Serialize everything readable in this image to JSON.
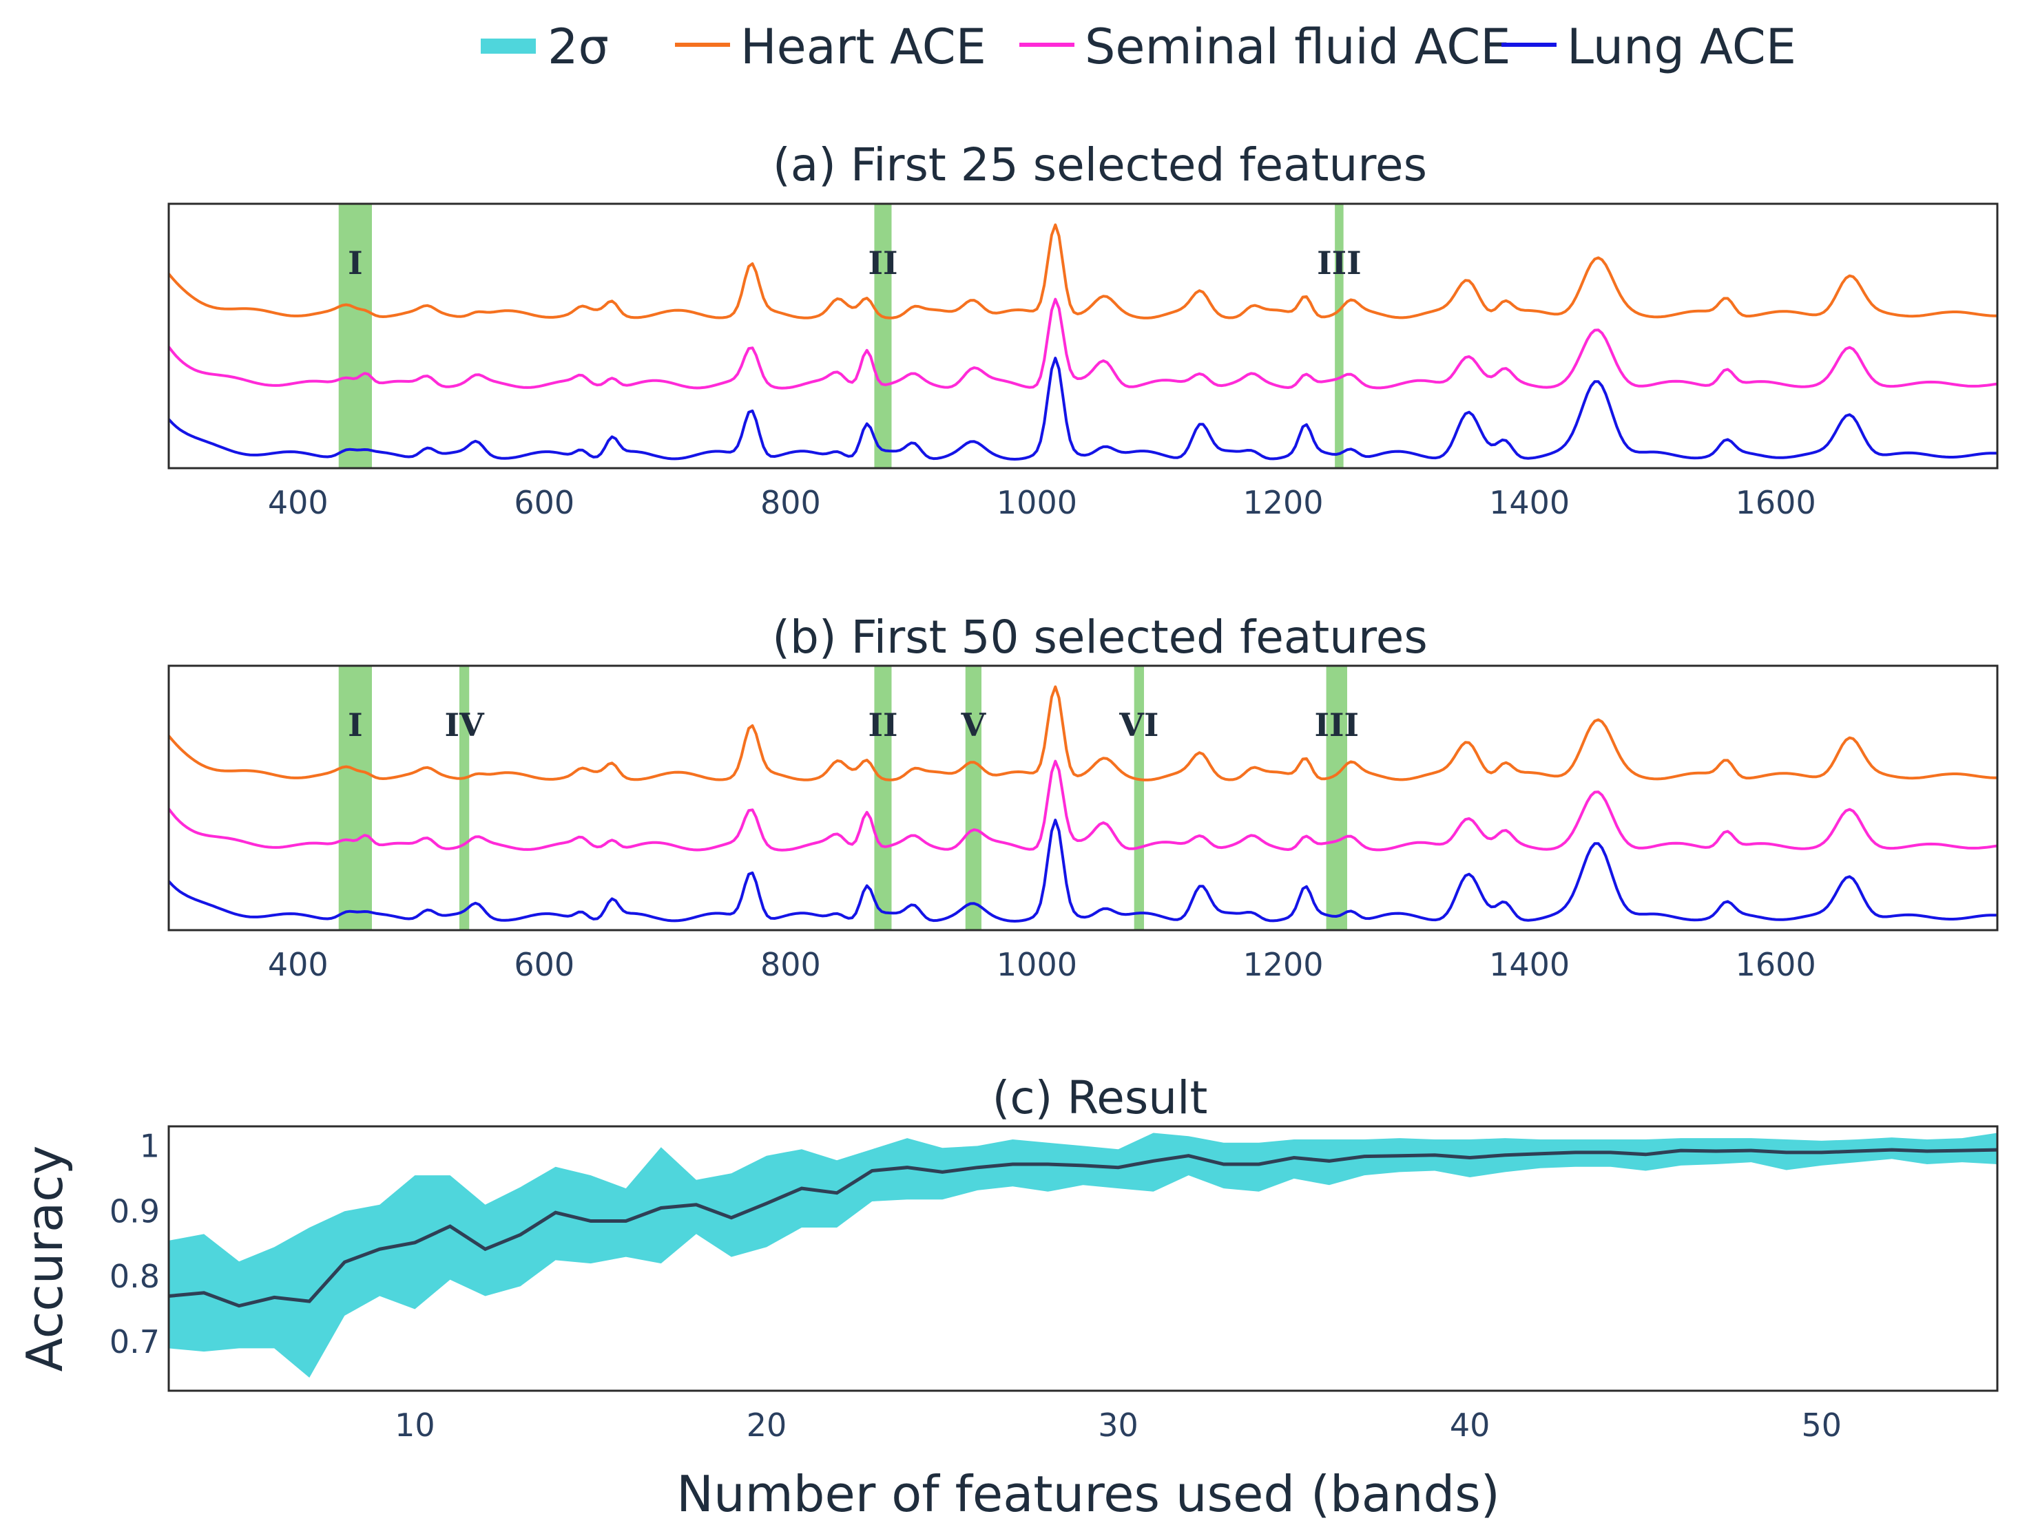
{
  "legend": [
    {
      "key": "band",
      "label": "2σ",
      "color": "#4fd6dc"
    },
    {
      "key": "heart",
      "label": "Heart ACE",
      "color": "#f5711f"
    },
    {
      "key": "seminal",
      "label": "Seminal fluid ACE",
      "color": "#ff2ad8"
    },
    {
      "key": "lung",
      "label": "Lung ACE",
      "color": "#1414e6"
    }
  ],
  "colors": {
    "highlight": "#5cbf4a",
    "mean_line": "#2f3f55",
    "band": "#4fd6dc"
  },
  "chart_data": [
    {
      "id": "a",
      "type": "line",
      "title": "(a) First 25 selected features",
      "xlim": [
        295,
        1780
      ],
      "x_ticks": [
        400,
        600,
        800,
        1000,
        1200,
        1400,
        1600
      ],
      "series": [
        "Heart ACE",
        "Seminal fluid ACE",
        "Lung ACE"
      ],
      "highlight_bands": [
        {
          "label": "I",
          "from": 433,
          "to": 460
        },
        {
          "label": "II",
          "from": 868,
          "to": 882
        },
        {
          "label": "III",
          "from": 1242,
          "to": 1249
        }
      ]
    },
    {
      "id": "b",
      "type": "line",
      "title": "(b) First 50 selected features",
      "xlim": [
        295,
        1780
      ],
      "x_ticks": [
        400,
        600,
        800,
        1000,
        1200,
        1400,
        1600
      ],
      "series": [
        "Heart ACE",
        "Seminal fluid ACE",
        "Lung ACE"
      ],
      "highlight_bands": [
        {
          "label": "I",
          "from": 433,
          "to": 460
        },
        {
          "label": "IV",
          "from": 531,
          "to": 539
        },
        {
          "label": "II",
          "from": 868,
          "to": 882
        },
        {
          "label": "V",
          "from": 942,
          "to": 955
        },
        {
          "label": "VI",
          "from": 1079,
          "to": 1087
        },
        {
          "label": "III",
          "from": 1235,
          "to": 1252
        }
      ]
    },
    {
      "id": "c",
      "type": "line",
      "title": "(c) Result",
      "xlabel": "Number of features used (bands)",
      "ylabel": "Accuracy",
      "xlim": [
        3,
        55
      ],
      "ylim": [
        0.625,
        1.03
      ],
      "x_ticks": [
        10,
        20,
        30,
        40,
        50
      ],
      "y_ticks": [
        0.7,
        0.8,
        0.9,
        1
      ],
      "y_tick_labels": [
        "0.7",
        "0.8",
        "0.9",
        "1"
      ],
      "x": [
        3,
        4,
        5,
        6,
        7,
        8,
        9,
        10,
        11,
        12,
        13,
        14,
        15,
        16,
        17,
        18,
        19,
        20,
        21,
        22,
        23,
        24,
        25,
        26,
        27,
        28,
        29,
        30,
        31,
        32,
        33,
        34,
        35,
        36,
        37,
        38,
        39,
        40,
        41,
        42,
        43,
        44,
        45,
        46,
        47,
        48,
        49,
        50,
        51,
        52,
        53,
        54,
        55
      ],
      "mean": [
        0.77,
        0.775,
        0.755,
        0.768,
        0.762,
        0.822,
        0.842,
        0.852,
        0.877,
        0.842,
        0.864,
        0.898,
        0.885,
        0.885,
        0.905,
        0.91,
        0.89,
        0.912,
        0.935,
        0.928,
        0.962,
        0.967,
        0.96,
        0.967,
        0.972,
        0.972,
        0.97,
        0.967,
        0.977,
        0.985,
        0.972,
        0.972,
        0.982,
        0.977,
        0.984,
        0.985,
        0.986,
        0.982,
        0.986,
        0.988,
        0.99,
        0.99,
        0.987,
        0.993,
        0.992,
        0.993,
        0.99,
        0.99,
        0.992,
        0.994,
        0.992,
        0.993,
        0.994
      ],
      "upper": [
        0.855,
        0.865,
        0.823,
        0.845,
        0.875,
        0.9,
        0.91,
        0.955,
        0.955,
        0.91,
        0.937,
        0.968,
        0.955,
        0.935,
        0.998,
        0.948,
        0.958,
        0.985,
        0.995,
        0.978,
        0.995,
        1.012,
        0.997,
        1.0,
        1.01,
        1.005,
        1.0,
        0.995,
        1.02,
        1.015,
        1.005,
        1.005,
        1.01,
        1.01,
        1.01,
        1.012,
        1.01,
        1.01,
        1.012,
        1.01,
        1.01,
        1.01,
        1.01,
        1.012,
        1.012,
        1.012,
        1.01,
        1.008,
        1.01,
        1.013,
        1.01,
        1.012,
        1.02
      ],
      "lower": [
        0.69,
        0.685,
        0.69,
        0.69,
        0.645,
        0.74,
        0.77,
        0.75,
        0.795,
        0.77,
        0.785,
        0.825,
        0.82,
        0.83,
        0.82,
        0.865,
        0.83,
        0.845,
        0.875,
        0.875,
        0.915,
        0.918,
        0.918,
        0.932,
        0.938,
        0.93,
        0.94,
        0.935,
        0.93,
        0.955,
        0.935,
        0.93,
        0.95,
        0.94,
        0.955,
        0.96,
        0.962,
        0.952,
        0.96,
        0.966,
        0.968,
        0.968,
        0.962,
        0.97,
        0.972,
        0.975,
        0.963,
        0.97,
        0.975,
        0.98,
        0.972,
        0.975,
        0.972
      ]
    }
  ]
}
